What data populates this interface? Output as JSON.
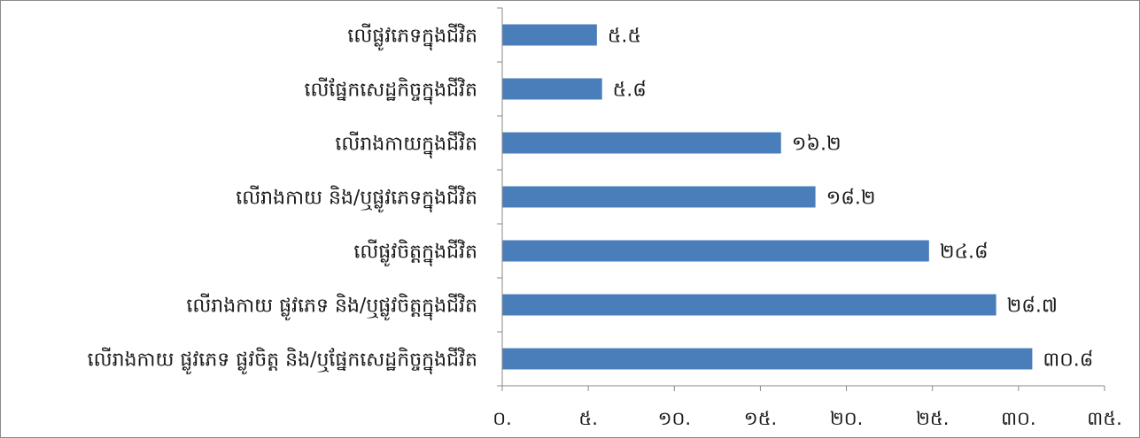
{
  "chart_data": {
    "type": "bar",
    "orientation": "horizontal",
    "categories": [
      "លើផ្លូវភេទក្នុងជីវិត",
      "លើផ្នែកសេដ្ឋកិច្ចក្នុងជីវិត",
      "លើរាងកាយក្នុងជីវិត",
      "លើរាងកាយ និង/ឬផ្លូវភេទក្នុងជីវិត",
      "លើផ្លូវចិត្តក្នុងជីវិត",
      "លើរាងកាយ ផ្លូវភេទ និង/ឬផ្លូវចិត្តក្នុងជីវិត",
      "លើរាងកាយ ផ្លូវភេទ ផ្លូវចិត្ត និង/ឬផ្នែកសេដ្ឋកិច្ចក្នុងជីវិត"
    ],
    "values": [
      5.5,
      5.8,
      16.2,
      18.2,
      24.8,
      28.7,
      30.8
    ],
    "value_labels": [
      "៥.៥",
      "៥.៨",
      "១៦.២",
      "១៨.២",
      "២៤.៨",
      "២៨.៧",
      "៣០.៨"
    ],
    "xlim": [
      0,
      35
    ],
    "x_ticks": [
      0,
      5,
      10,
      15,
      20,
      25,
      30,
      35
    ],
    "x_tick_labels": [
      "០.",
      "៥.",
      "១០.",
      "១៥.",
      "២០.",
      "២៥.",
      "៣០.",
      "៣៥."
    ],
    "title": "",
    "xlabel": "",
    "ylabel": "",
    "grid": false,
    "legend": "none",
    "bar_color": "#4a7ebb"
  }
}
